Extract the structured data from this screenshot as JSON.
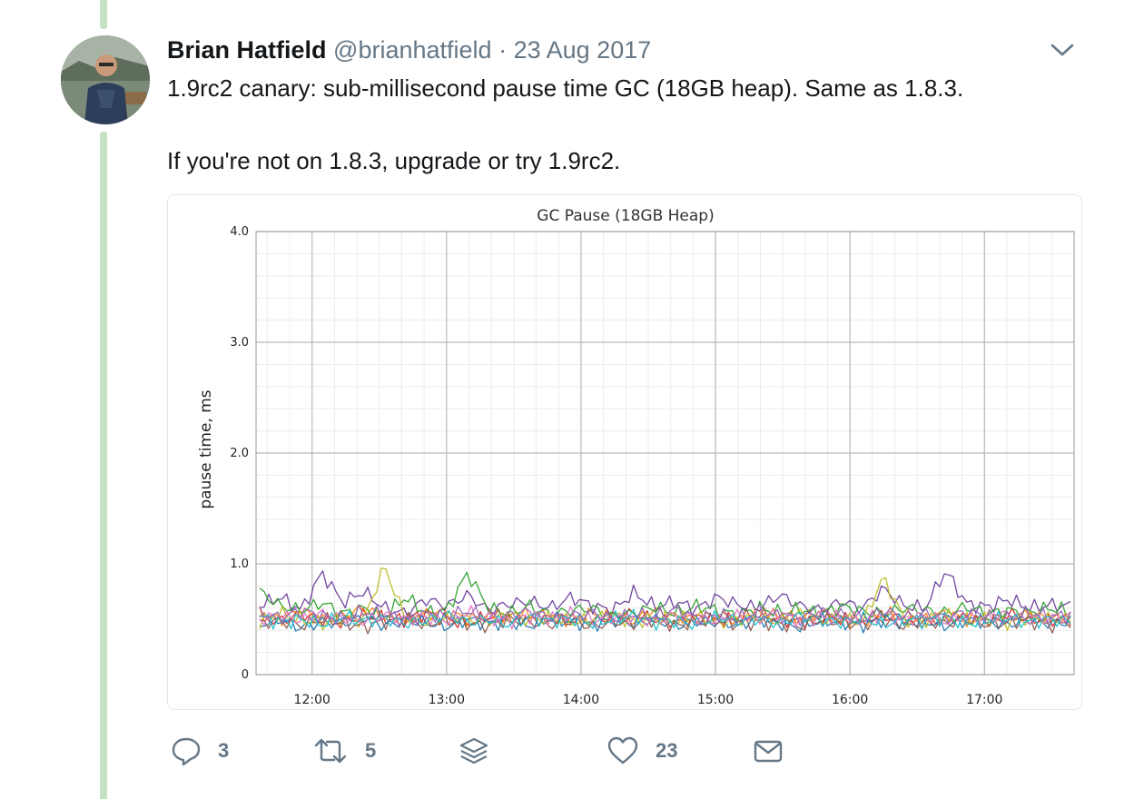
{
  "tweet": {
    "author_name": "Brian Hatfield",
    "handle": "@brianhatfield",
    "separator": "·",
    "date": "23 Aug 2017",
    "text_lines": [
      "1.9rc2 canary: sub-millisecond pause time GC (18GB heap). Same as 1.8.3.",
      "If you're not on 1.8.3, upgrade or try 1.9rc2."
    ],
    "icons": {
      "more": "chevron-down-icon",
      "reply": "reply-icon",
      "retweet": "retweet-icon",
      "stack": "stack-icon",
      "like": "heart-icon",
      "dm": "envelope-icon"
    },
    "actions": {
      "replies": "3",
      "retweets": "5",
      "likes": "23"
    }
  },
  "colors": {
    "thread_line": "#c4e2c4",
    "icon_gray": "#657786",
    "text": "#14171a"
  },
  "chart_data": {
    "type": "line",
    "title": "GC Pause (18GB Heap)",
    "xlabel": "",
    "ylabel": "pause time, ms",
    "xlim": [
      "11:35",
      "17:40"
    ],
    "ylim": [
      0,
      4.0
    ],
    "y_ticks": [
      "0",
      "1.0",
      "2.0",
      "3.0",
      "4.0"
    ],
    "x_ticks": [
      "12:00",
      "13:00",
      "14:00",
      "15:00",
      "16:00",
      "17:00"
    ],
    "grid": true,
    "legend": "none",
    "series_note_hidden": true,
    "series": [
      {
        "color": "#d62728",
        "baseline": 0.5,
        "values": [
          0.52,
          0.48,
          0.55,
          0.5,
          0.47,
          0.53,
          0.51,
          0.49,
          0.56,
          0.5,
          0.46,
          0.52,
          0.54,
          0.49,
          0.51,
          0.5,
          0.48,
          0.53,
          0.55,
          0.5,
          0.47,
          0.52,
          0.49,
          0.51,
          0.54,
          0.5,
          0.48,
          0.52,
          0.5,
          0.49,
          0.53,
          0.51,
          0.47,
          0.5,
          0.52,
          0.48,
          0.55,
          0.5,
          0.49,
          0.51
        ]
      },
      {
        "color": "#ff7f0e",
        "baseline": 0.52,
        "values": [
          0.55,
          0.5,
          0.58,
          0.49,
          0.53,
          0.6,
          0.52,
          0.48,
          0.54,
          0.57,
          0.5,
          0.53,
          0.49,
          0.56,
          0.52,
          0.5,
          0.55,
          0.51,
          0.48,
          0.58,
          0.52,
          0.5,
          0.54,
          0.49,
          0.56,
          0.53,
          0.5,
          0.57,
          0.51,
          0.48,
          0.55,
          0.52,
          0.5,
          0.56,
          0.49,
          0.53,
          0.51,
          0.55,
          0.5,
          0.52
        ]
      },
      {
        "color": "#6a3d9a",
        "baseline": 0.6,
        "values": [
          0.62,
          0.7,
          0.58,
          0.92,
          0.65,
          0.75,
          0.6,
          0.55,
          0.68,
          0.62,
          0.72,
          0.58,
          0.64,
          0.66,
          0.6,
          0.7,
          0.62,
          0.58,
          0.74,
          0.61,
          0.66,
          0.59,
          0.7,
          0.63,
          0.6,
          0.72,
          0.62,
          0.58,
          0.66,
          0.6,
          0.78,
          0.62,
          0.6,
          0.94,
          0.64,
          0.61,
          0.68,
          0.6,
          0.63,
          0.62
        ]
      },
      {
        "color": "#2ca02c",
        "baseline": 0.55,
        "values": [
          0.75,
          0.62,
          0.58,
          0.65,
          0.55,
          0.6,
          0.52,
          0.7,
          0.56,
          0.58,
          0.92,
          0.6,
          0.55,
          0.62,
          0.54,
          0.58,
          0.6,
          0.52,
          0.56,
          0.61,
          0.55,
          0.62,
          0.58,
          0.54,
          0.6,
          0.56,
          0.59,
          0.55,
          0.62,
          0.57,
          0.55,
          0.6,
          0.58,
          0.56,
          0.61,
          0.55,
          0.58,
          0.56,
          0.6,
          0.57
        ]
      },
      {
        "color": "#1f77b4",
        "baseline": 0.48,
        "values": [
          0.45,
          0.5,
          0.42,
          0.48,
          0.46,
          0.52,
          0.44,
          0.49,
          0.47,
          0.43,
          0.5,
          0.46,
          0.48,
          0.44,
          0.51,
          0.47,
          0.45,
          0.49,
          0.46,
          0.5,
          0.44,
          0.48,
          0.47,
          0.45,
          0.5,
          0.46,
          0.43,
          0.49,
          0.47,
          0.45,
          0.5,
          0.46,
          0.48,
          0.44,
          0.49,
          0.47,
          0.45,
          0.5,
          0.46,
          0.48
        ]
      },
      {
        "color": "#bcbd22",
        "baseline": 0.5,
        "values": [
          0.48,
          0.55,
          0.5,
          0.46,
          0.52,
          0.49,
          0.98,
          0.51,
          0.47,
          0.53,
          0.5,
          0.48,
          0.55,
          0.49,
          0.52,
          0.47,
          0.5,
          0.54,
          0.48,
          0.51,
          0.49,
          0.53,
          0.47,
          0.5,
          0.52,
          0.48,
          0.55,
          0.49,
          0.51,
          0.47,
          0.88,
          0.5,
          0.48,
          0.53,
          0.49,
          0.51,
          0.47,
          0.52,
          0.5,
          0.49
        ]
      },
      {
        "color": "#8c564b",
        "baseline": 0.47,
        "values": [
          0.46,
          0.49,
          0.44,
          0.5,
          0.47,
          0.43,
          0.48,
          0.51,
          0.45,
          0.49,
          0.46,
          0.44,
          0.5,
          0.47,
          0.45,
          0.49,
          0.43,
          0.48,
          0.46,
          0.5,
          0.44,
          0.47,
          0.49,
          0.45,
          0.48,
          0.46,
          0.43,
          0.5,
          0.47,
          0.45,
          0.49,
          0.44,
          0.48,
          0.46,
          0.5,
          0.45,
          0.47,
          0.49,
          0.44,
          0.48
        ]
      },
      {
        "color": "#e377c2",
        "baseline": 0.51,
        "values": [
          0.5,
          0.53,
          0.49,
          0.55,
          0.51,
          0.48,
          0.54,
          0.5,
          0.52,
          0.49,
          0.56,
          0.51,
          0.48,
          0.53,
          0.5,
          0.55,
          0.49,
          0.52,
          0.5,
          0.48,
          0.54,
          0.51,
          0.49,
          0.53,
          0.5,
          0.56,
          0.48,
          0.52,
          0.51,
          0.49,
          0.54,
          0.5,
          0.53,
          0.48,
          0.52,
          0.5,
          0.55,
          0.49,
          0.51,
          0.53
        ]
      },
      {
        "color": "#17becf",
        "baseline": 0.49,
        "values": [
          0.52,
          0.47,
          0.5,
          0.45,
          0.53,
          0.48,
          0.51,
          0.46,
          0.49,
          0.54,
          0.47,
          0.5,
          0.45,
          0.52,
          0.48,
          0.51,
          0.46,
          0.5,
          0.53,
          0.47,
          0.49,
          0.45,
          0.52,
          0.48,
          0.5,
          0.46,
          0.53,
          0.49,
          0.47,
          0.51,
          0.45,
          0.5,
          0.48,
          0.52,
          0.46,
          0.49,
          0.51,
          0.47,
          0.5,
          0.48
        ]
      },
      {
        "color": "#9467bd",
        "baseline": 0.53,
        "values": [
          0.56,
          0.51,
          0.58,
          0.53,
          0.5,
          0.57,
          0.54,
          0.49,
          0.55,
          0.52,
          0.58,
          0.5,
          0.54,
          0.57,
          0.51,
          0.53,
          0.56,
          0.5,
          0.55,
          0.52,
          0.59,
          0.51,
          0.54,
          0.5,
          0.57,
          0.53,
          0.51,
          0.56,
          0.54,
          0.5,
          0.58,
          0.52,
          0.55,
          0.51,
          0.57,
          0.53,
          0.5,
          0.56,
          0.52,
          0.54
        ]
      }
    ]
  }
}
